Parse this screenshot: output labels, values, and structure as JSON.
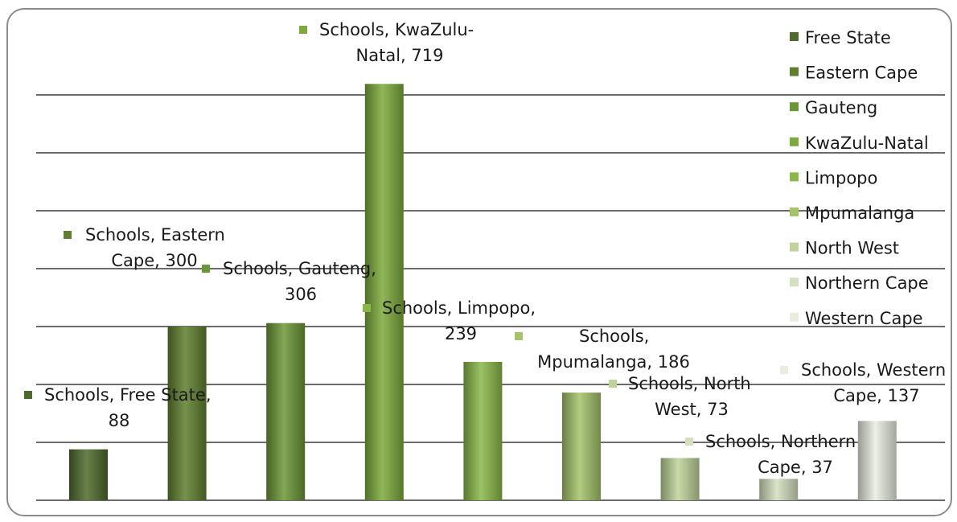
{
  "chart_data": {
    "type": "bar",
    "categories": [
      "Free State",
      "Eastern Cape",
      "Gauteng",
      "KwaZulu-Natal",
      "Limpopo",
      "Mpumalanga",
      "North West",
      "Northern Cape",
      "Western Cape"
    ],
    "series": [
      {
        "name": "Schools",
        "values": [
          88,
          300,
          306,
          719,
          239,
          186,
          73,
          37,
          137
        ]
      }
    ],
    "data_labels": [
      [
        "Schools, Free State,",
        "88"
      ],
      [
        "Schools, Eastern",
        "Cape, 300"
      ],
      [
        "Schools, Gauteng,",
        "306"
      ],
      [
        "Schools, KwaZulu-",
        "Natal, 719"
      ],
      [
        "Schools, Limpopo,",
        "239"
      ],
      [
        "Schools,",
        "Mpumalanga, 186"
      ],
      [
        "Schools, North",
        "West, 73"
      ],
      [
        "Schools, Northern",
        "Cape, 37"
      ],
      [
        "Schools, Western",
        "Cape, 137"
      ]
    ],
    "legend": [
      "Free State",
      "Eastern Cape",
      "Gauteng",
      "KwaZulu-Natal",
      "Limpopo",
      "Mpumalanga",
      "North West",
      "Northern Cape",
      "Western Cape"
    ],
    "legend_position": "right",
    "colors": [
      "#4f6b2c",
      "#5f7f2e",
      "#6b9636",
      "#7caa3c",
      "#8ab848",
      "#a4c46a",
      "#bfd39a",
      "#d4dfc0",
      "#e9ede0"
    ],
    "ylim": [
      0,
      800
    ],
    "gridline_step": 100,
    "grid": true,
    "title": "",
    "xlabel": "",
    "ylabel": ""
  }
}
